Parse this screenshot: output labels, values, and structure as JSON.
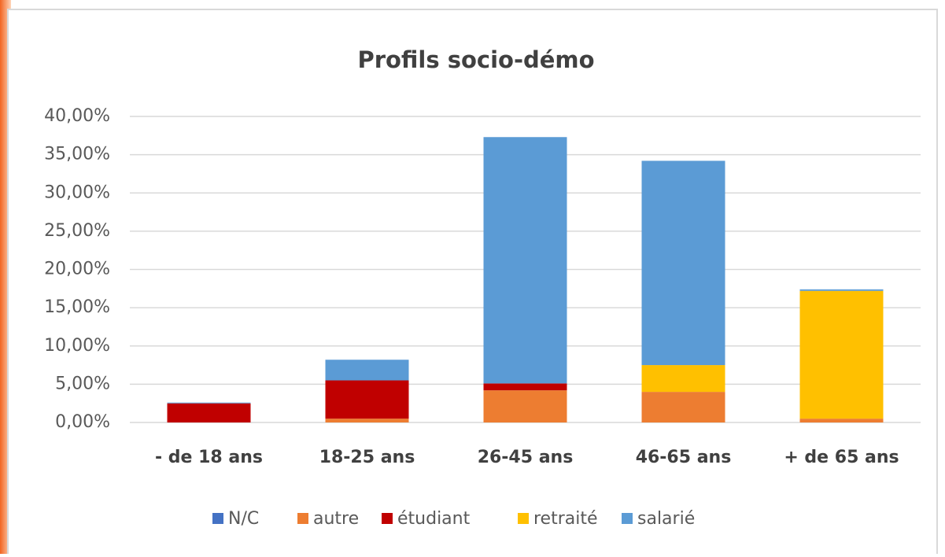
{
  "chart_data": {
    "type": "stacked_bar",
    "title": "Profils socio-démo",
    "categories": [
      "- de 18 ans",
      "18-25 ans",
      "26-45 ans",
      "46-65 ans",
      "+ de 65 ans"
    ],
    "series": [
      {
        "name": "N/C",
        "color": "#4472c4",
        "values": [
          0,
          0,
          0,
          0,
          0
        ]
      },
      {
        "name": "autre",
        "color": "#ed7d31",
        "values": [
          0,
          0.5,
          4.2,
          4.0,
          0.5
        ]
      },
      {
        "name": "étudiant",
        "color": "#c00000",
        "values": [
          2.5,
          5.0,
          0.9,
          0,
          0
        ]
      },
      {
        "name": "retraité",
        "color": "#ffc000",
        "values": [
          0,
          0,
          0,
          3.5,
          16.7
        ]
      },
      {
        "name": "salarié",
        "color": "#5b9bd5",
        "values": [
          0.1,
          2.7,
          32.2,
          26.7,
          0.2
        ]
      }
    ],
    "ylim": [
      0,
      40
    ],
    "yticks": [
      {
        "value": 0,
        "label": "0,00%"
      },
      {
        "value": 5,
        "label": "5,00%"
      },
      {
        "value": 10,
        "label": "10,00%"
      },
      {
        "value": 15,
        "label": "15,00%"
      },
      {
        "value": 20,
        "label": "20,00%"
      },
      {
        "value": 25,
        "label": "25,00%"
      },
      {
        "value": 30,
        "label": "30,00%"
      },
      {
        "value": 35,
        "label": "35,00%"
      },
      {
        "value": 40,
        "label": "40,00%"
      }
    ],
    "grid": true,
    "legend": "bottom"
  }
}
